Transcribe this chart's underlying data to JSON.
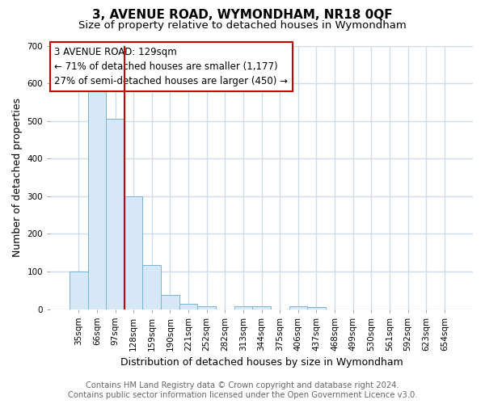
{
  "title": "3, AVENUE ROAD, WYMONDHAM, NR18 0QF",
  "subtitle": "Size of property relative to detached houses in Wymondham",
  "xlabel": "Distribution of detached houses by size in Wymondham",
  "ylabel": "Number of detached properties",
  "categories": [
    "35sqm",
    "66sqm",
    "97sqm",
    "128sqm",
    "159sqm",
    "190sqm",
    "221sqm",
    "252sqm",
    "282sqm",
    "313sqm",
    "344sqm",
    "375sqm",
    "406sqm",
    "437sqm",
    "468sqm",
    "499sqm",
    "530sqm",
    "561sqm",
    "592sqm",
    "623sqm",
    "654sqm"
  ],
  "values": [
    100,
    578,
    505,
    300,
    118,
    38,
    15,
    8,
    0,
    8,
    8,
    0,
    8,
    5,
    0,
    0,
    0,
    0,
    0,
    0,
    0
  ],
  "bar_color": "#d6e8f7",
  "bar_edge_color": "#7ab3d4",
  "subject_line_color": "#cc0000",
  "subject_bar_index": 3,
  "annotation_line1": "3 AVENUE ROAD: 129sqm",
  "annotation_line2": "← 71% of detached houses are smaller (1,177)",
  "annotation_line3": "27% of semi-detached houses are larger (450) →",
  "annotation_box_color": "#ffffff",
  "annotation_box_edge_color": "#cc0000",
  "ylim": [
    0,
    700
  ],
  "yticks": [
    0,
    100,
    200,
    300,
    400,
    500,
    600,
    700
  ],
  "footer_line1": "Contains HM Land Registry data © Crown copyright and database right 2024.",
  "footer_line2": "Contains public sector information licensed under the Open Government Licence v3.0.",
  "bg_color": "#ffffff",
  "plot_bg_color": "#ffffff",
  "grid_color": "#d0dce8",
  "title_fontsize": 11,
  "subtitle_fontsize": 9.5,
  "tick_fontsize": 7.5,
  "label_fontsize": 9,
  "footer_fontsize": 7.2,
  "annotation_fontsize": 8.5
}
